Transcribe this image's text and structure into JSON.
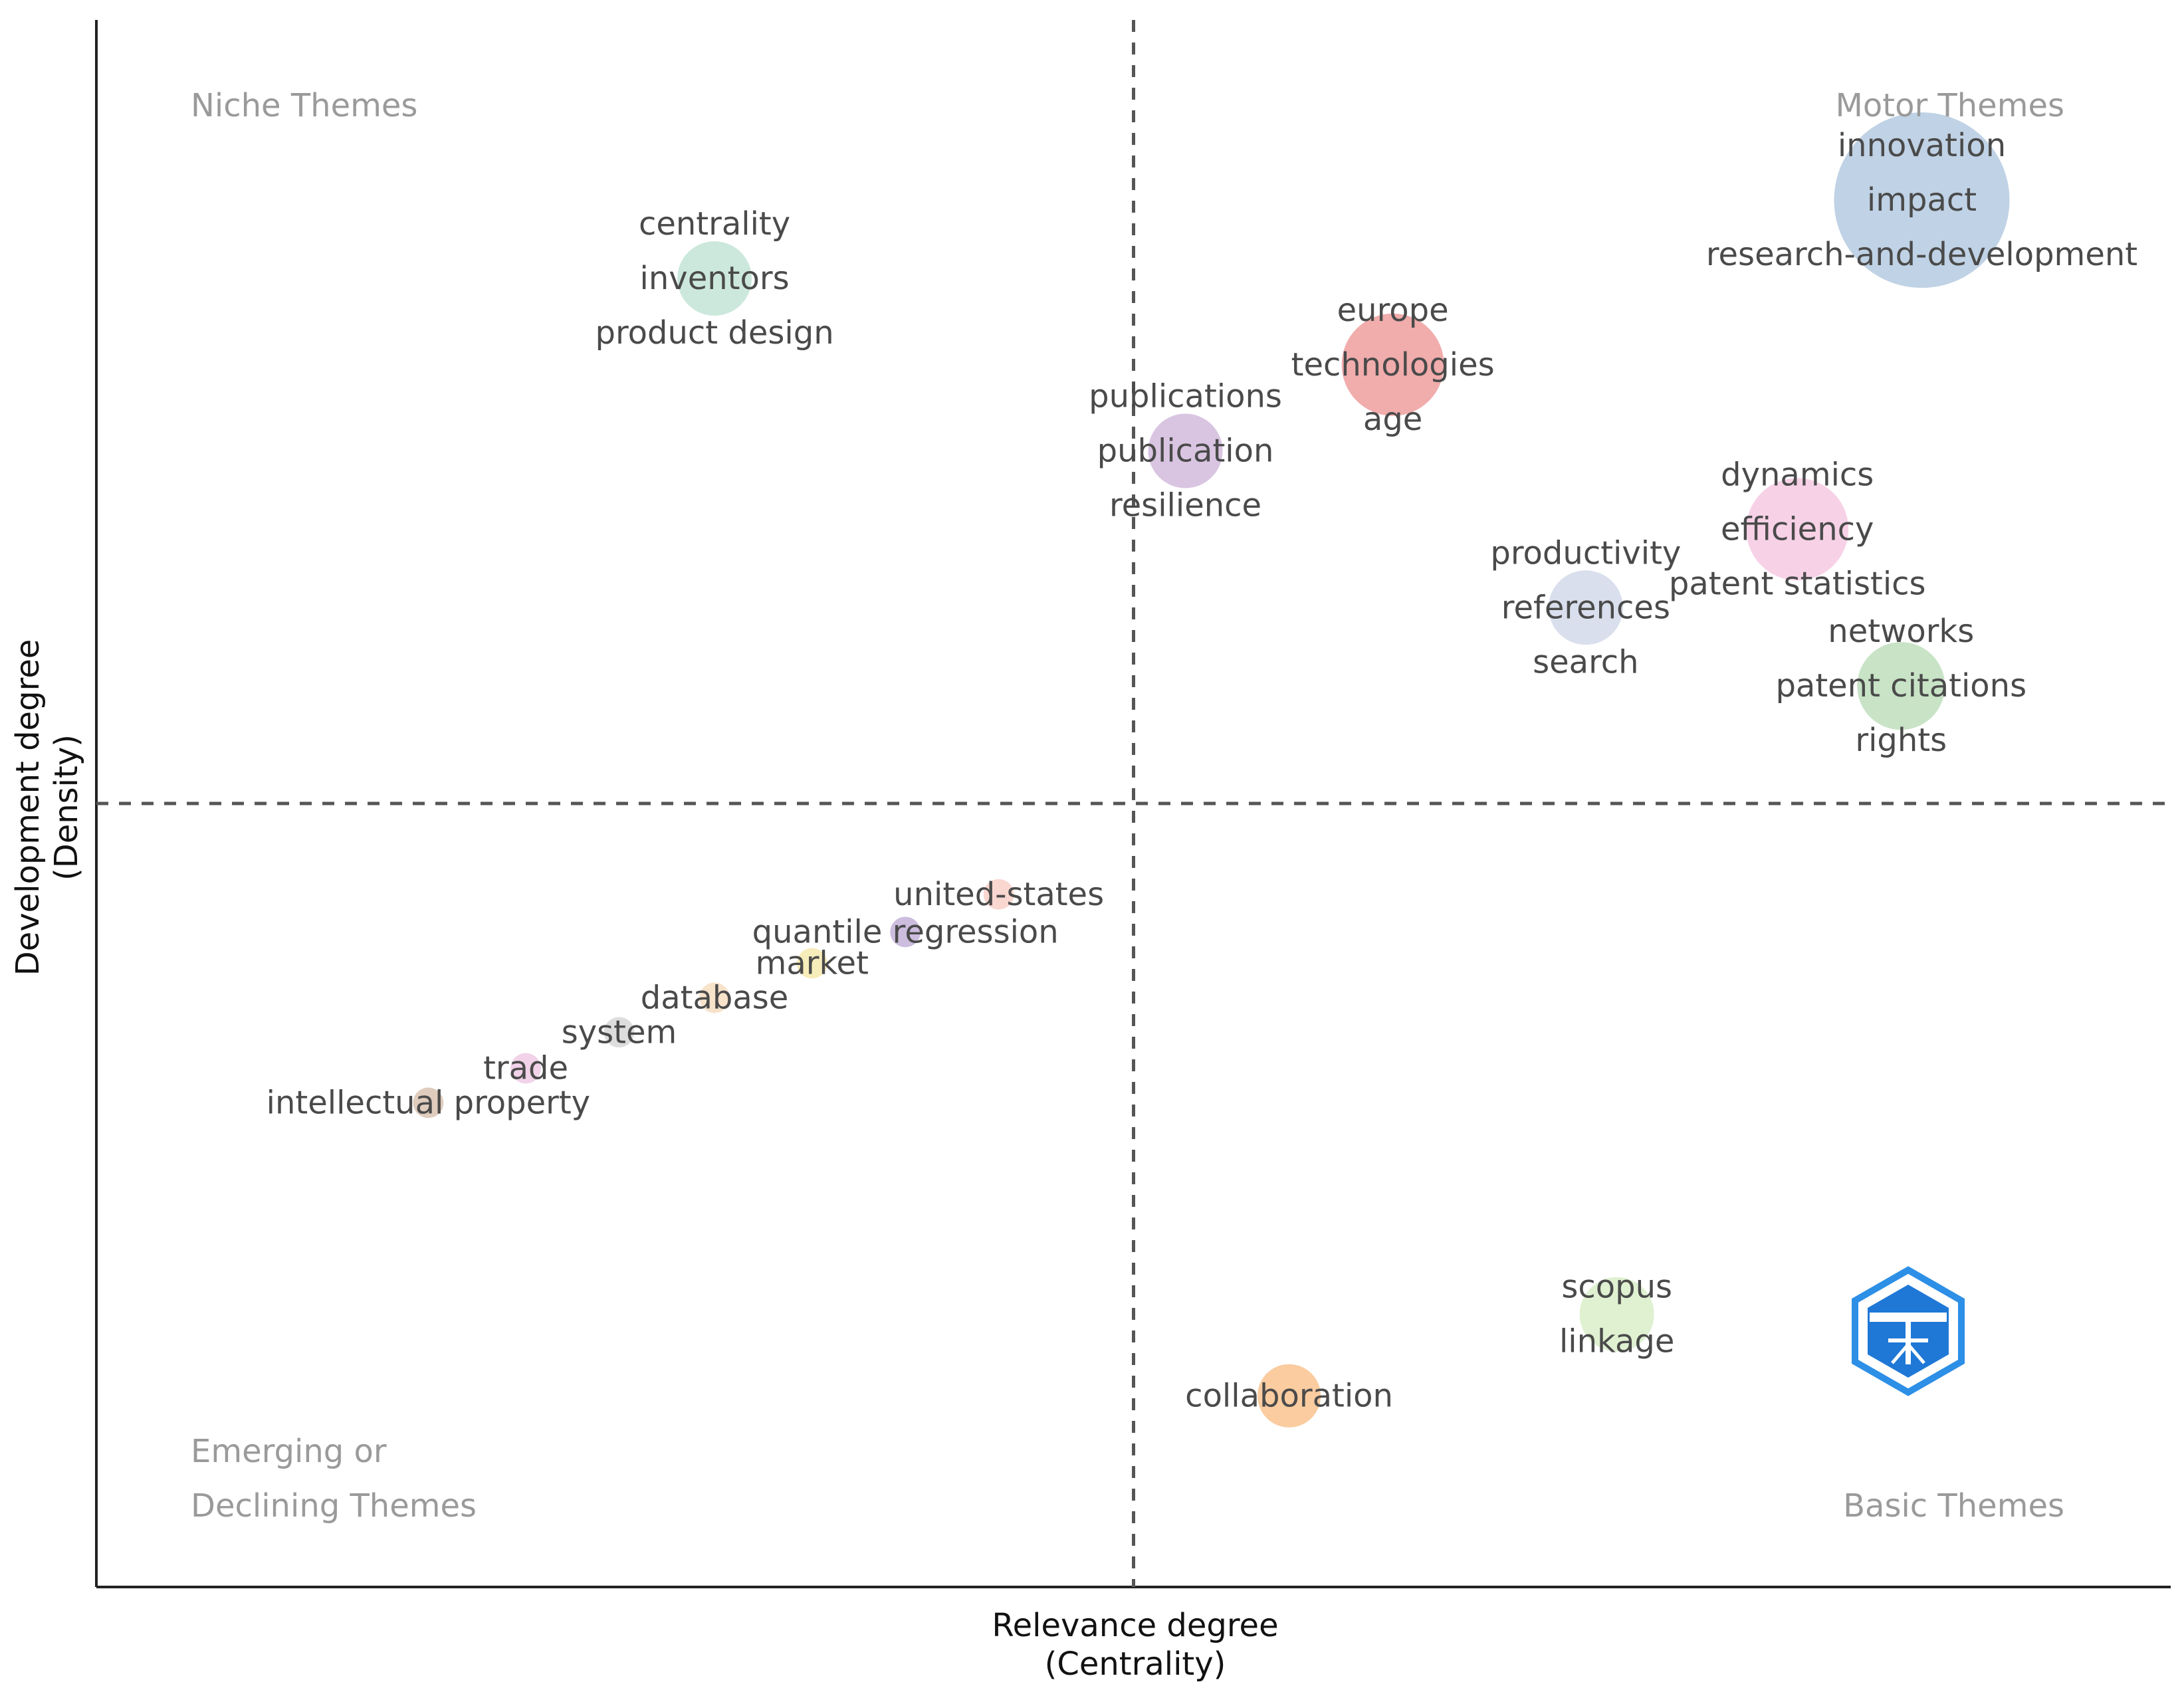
{
  "chart_data": {
    "type": "scatter",
    "subtype": "thematic-map",
    "xlabel": [
      "Relevance degree",
      "(Centrality)"
    ],
    "ylabel": [
      "Development degree",
      "(Density)"
    ],
    "xlim": [
      0,
      100
    ],
    "ylim": [
      0,
      100
    ],
    "divider_x": 50,
    "divider_y": 50,
    "grid": false,
    "quadrants": {
      "top_left": [
        "Niche Themes"
      ],
      "top_right": [
        "Motor Themes"
      ],
      "bottom_left": [
        "Emerging or",
        "Declining Themes"
      ],
      "bottom_right": [
        "Basic Themes"
      ]
    },
    "clusters": [
      {
        "name": "innovation",
        "terms": [
          "innovation",
          "impact",
          "research-and-development"
        ],
        "x": 88.0,
        "y": 88.5,
        "size": 100,
        "color": "#b9cde2"
      },
      {
        "name": "centrality",
        "terms": [
          "centrality",
          "inventors",
          "product design"
        ],
        "x": 29.8,
        "y": 83.5,
        "size": 18,
        "color": "#c6e6d8"
      },
      {
        "name": "europe",
        "terms": [
          "europe",
          "technologies",
          "age"
        ],
        "x": 62.5,
        "y": 78.0,
        "size": 34,
        "color": "#f0a3a3"
      },
      {
        "name": "publications",
        "terms": [
          "publications",
          "publication",
          "resilience"
        ],
        "x": 52.5,
        "y": 72.5,
        "size": 18,
        "color": "#d5bfdf"
      },
      {
        "name": "dynamics",
        "terms": [
          "dynamics",
          "efficiency",
          "patent statistics"
        ],
        "x": 82.0,
        "y": 67.5,
        "size": 34,
        "color": "#f6cde4"
      },
      {
        "name": "productivity",
        "terms": [
          "productivity",
          "references",
          "search"
        ],
        "x": 71.8,
        "y": 62.5,
        "size": 18,
        "color": "#d5dcea"
      },
      {
        "name": "networks",
        "terms": [
          "networks",
          "patent citations",
          "rights"
        ],
        "x": 87.0,
        "y": 57.5,
        "size": 25,
        "color": "#c2e0c0"
      },
      {
        "name": "united-states",
        "terms": [
          "united-states"
        ],
        "x": 43.5,
        "y": 44.2,
        "size": 3,
        "color": "#f9d2cb"
      },
      {
        "name": "quantile regression",
        "terms": [
          "quantile regression"
        ],
        "x": 39.0,
        "y": 41.8,
        "size": 3,
        "color": "#c6b6dc"
      },
      {
        "name": "market",
        "terms": [
          "market"
        ],
        "x": 34.5,
        "y": 39.8,
        "size": 3,
        "color": "#f6ebb3"
      },
      {
        "name": "database",
        "terms": [
          "database"
        ],
        "x": 29.8,
        "y": 37.6,
        "size": 3,
        "color": "#f6dfc4"
      },
      {
        "name": "system",
        "terms": [
          "system"
        ],
        "x": 25.2,
        "y": 35.4,
        "size": 3,
        "color": "#d9d9d9"
      },
      {
        "name": "trade",
        "terms": [
          "trade"
        ],
        "x": 20.7,
        "y": 33.1,
        "size": 3,
        "color": "#efcde6"
      },
      {
        "name": "intellectual property",
        "terms": [
          "intellectual property"
        ],
        "x": 16.0,
        "y": 30.9,
        "size": 3,
        "color": "#dcc6b6"
      },
      {
        "name": "scopus",
        "terms": [
          "scopus",
          "linkage"
        ],
        "x": 73.3,
        "y": 17.4,
        "size": 18,
        "color": "#dcefcc"
      },
      {
        "name": "collaboration",
        "terms": [
          "collaboration"
        ],
        "x": 57.5,
        "y": 12.2,
        "size": 13,
        "color": "#f9c796"
      }
    ]
  }
}
